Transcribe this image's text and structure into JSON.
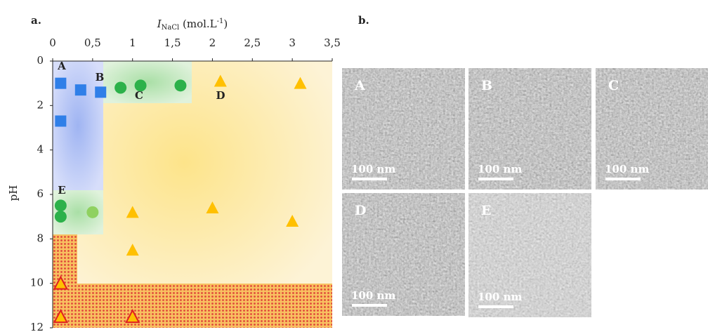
{
  "chart_data": {
    "type": "scatter",
    "panel_label": "a.",
    "x_label": {
      "main": "I",
      "sub": "NaCl",
      "rest": " (mol.L",
      "sup": "-1",
      "end": ")"
    },
    "y_label": "pH",
    "xlim": [
      0,
      3.5
    ],
    "ylim": [
      12,
      0
    ],
    "y_inverted": true,
    "xticks": [
      0,
      {
        "value": 0.5,
        "label": "0,5"
      },
      1,
      {
        "value": 1.5,
        "label": "1,5"
      },
      2,
      {
        "value": 2.5,
        "label": "2,5"
      },
      3,
      {
        "value": 3.5,
        "label": "3,5"
      }
    ],
    "yticks": [
      0,
      2,
      4,
      6,
      8,
      10,
      12
    ],
    "series": [
      {
        "marker": "square",
        "color": "#2f7fe8",
        "x": [
          0.1,
          0.35,
          0.6,
          0.1
        ],
        "values": [
          1.0,
          1.3,
          1.4,
          2.7
        ]
      },
      {
        "marker": "circle",
        "color": "#2cb14a",
        "x": [
          0.85,
          1.1,
          1.6,
          0.1,
          0.1
        ],
        "values": [
          1.2,
          1.1,
          1.1,
          6.5,
          7.0
        ]
      },
      {
        "marker": "circle",
        "color": "#8fd160",
        "x": [
          0.5
        ],
        "values": [
          6.8
        ]
      },
      {
        "marker": "triangle",
        "color": "#ffc000",
        "x": [
          2.1,
          3.1,
          1.0,
          2.0,
          3.0,
          1.0
        ],
        "values": [
          0.9,
          1.0,
          6.8,
          6.6,
          7.2,
          8.5
        ]
      },
      {
        "marker": "triangle-outlined",
        "color": "#ffc000",
        "x": [
          0.1,
          0.1,
          1.0
        ],
        "values": [
          10.0,
          11.5,
          11.5
        ]
      }
    ],
    "annotations": [
      "A",
      "B",
      "C",
      "D",
      "E"
    ]
  },
  "panel_b": {
    "label": "b.",
    "images": [
      {
        "label": "A",
        "scale": "100 nm"
      },
      {
        "label": "B",
        "scale": "100 nm"
      },
      {
        "label": "C",
        "scale": "100 nm"
      },
      {
        "label": "D",
        "scale": "100 nm"
      },
      {
        "label": "E",
        "scale": "100 nm"
      }
    ]
  }
}
